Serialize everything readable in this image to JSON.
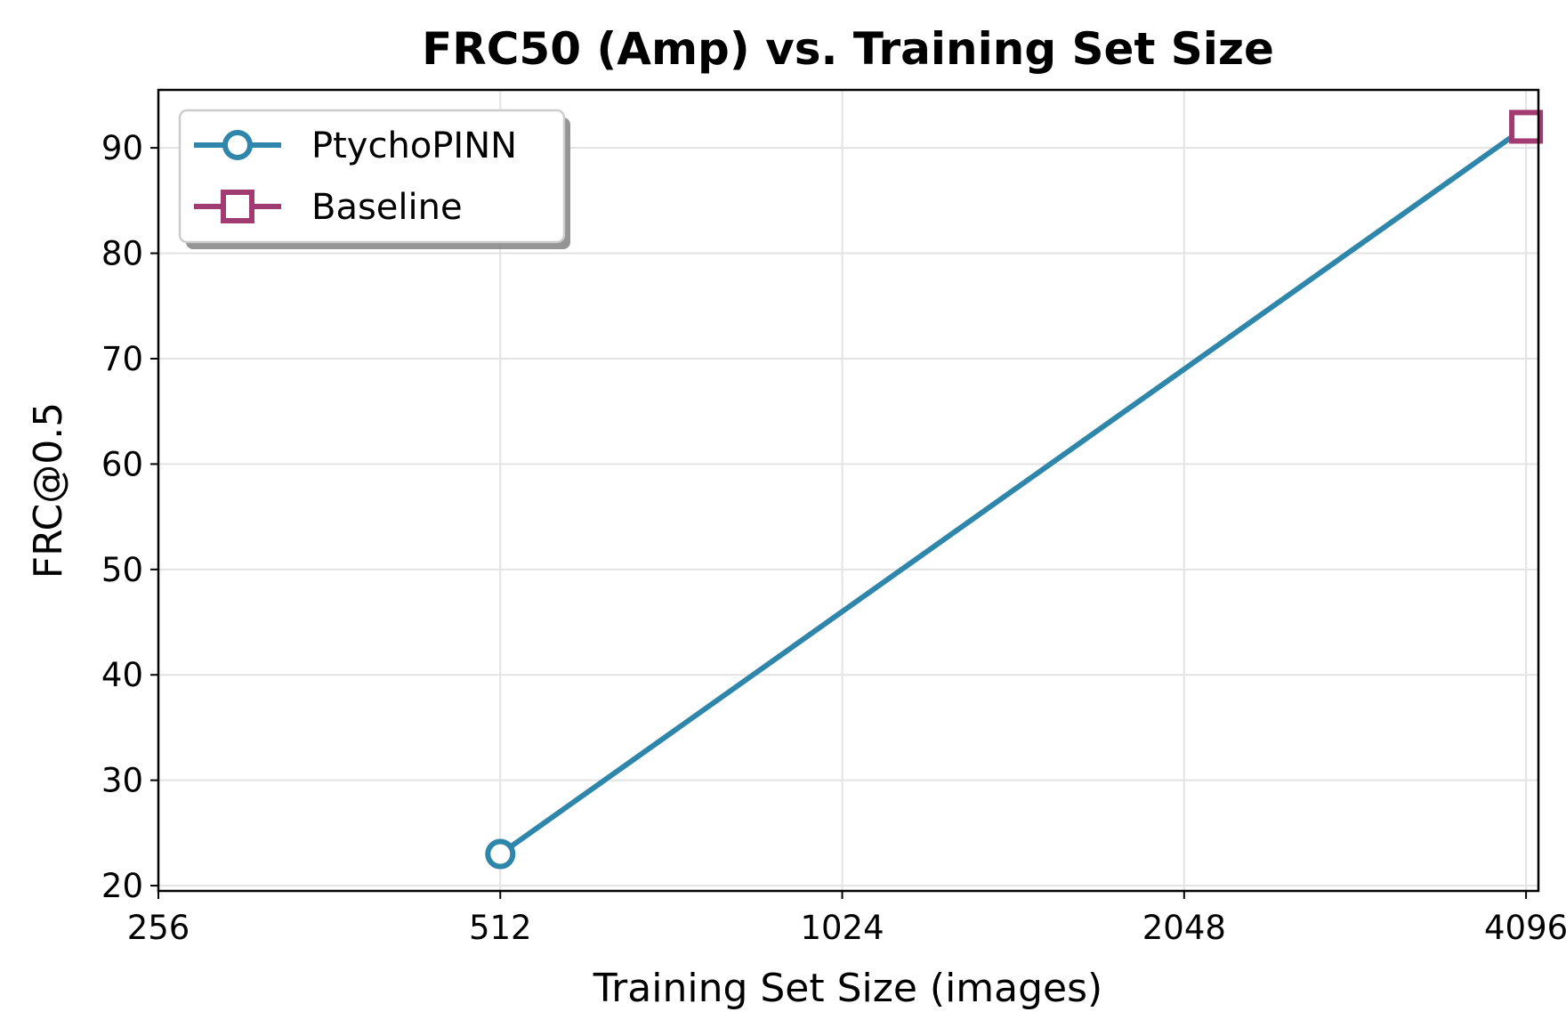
{
  "chart_data": {
    "type": "line",
    "title": "FRC50 (Amp) vs. Training Set Size",
    "xlabel": "Training Set Size (images)",
    "ylabel": "FRC@0.5",
    "xscale": "log2",
    "xlim": [
      256,
      4200
    ],
    "ylim": [
      19.5,
      95.5
    ],
    "xticks": [
      256,
      512,
      1024,
      2048,
      4096
    ],
    "yticks": [
      20,
      30,
      40,
      50,
      60,
      70,
      80,
      90
    ],
    "grid": true,
    "legend_position": "top-left",
    "series": [
      {
        "name": "PtychoPINN",
        "marker": "circle",
        "color": "#2e86ab",
        "points": [
          {
            "x": 512,
            "y": 23
          },
          {
            "x": 4096,
            "y": 92
          }
        ]
      },
      {
        "name": "Baseline",
        "marker": "square",
        "color": "#a23b72",
        "points": [
          {
            "x": 4096,
            "y": 92
          }
        ]
      }
    ]
  }
}
